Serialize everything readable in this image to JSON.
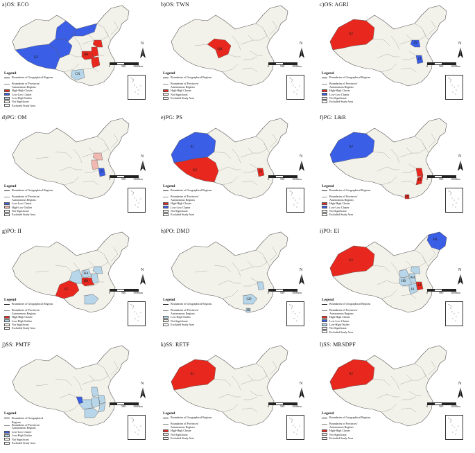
{
  "colors": {
    "land": "#f3f2ea",
    "border": "#8a8a8a",
    "outline": "#555555",
    "high_high": "#e8281e",
    "low_low": "#3a5ee6",
    "low_high": "#b7d6ea",
    "high_low": "#f0b8b0",
    "not_significant": "#f3f2ea",
    "excluded": "#ffffff"
  },
  "scale": {
    "zero": "0",
    "mid": "500",
    "end": "1000km"
  },
  "north_label": "N",
  "legend_title": "Legend",
  "legend_labels": {
    "geo": "Boundaries of Geographical Regions",
    "prov": "Boundaries of Provinces/ Autonomous Regions",
    "hh": "High-High Cluster",
    "ll": "Low-Low Cluster",
    "lh": "Low-High Outlier",
    "hl": "High-Low Outlier",
    "ns": "Not Significant",
    "ex": "Excluded Study Area",
    "geo_trunc": "Boundaries of Geographical",
    "regions_word": "Regions"
  },
  "panels": [
    {
      "title": "a)OS: ECO",
      "legend": [
        "geo",
        "prov",
        "hh",
        "ll",
        "lh",
        "ns",
        "ex"
      ],
      "regions": [
        {
          "p": "XZ",
          "c": "ll",
          "label": "XZ"
        },
        {
          "p": "QH",
          "c": "ll",
          "label": ""
        },
        {
          "p": "GS",
          "c": "ll",
          "label": ""
        },
        {
          "p": "NMW",
          "c": "ll",
          "label": ""
        },
        {
          "p": "HB",
          "c": "hh",
          "label": "HB"
        },
        {
          "p": "JS",
          "c": "hh",
          "label": ""
        },
        {
          "p": "AH",
          "c": "hh",
          "label": ""
        },
        {
          "p": "JX",
          "c": "hh",
          "label": ""
        },
        {
          "p": "GX",
          "c": "lh",
          "label": "GX"
        }
      ]
    },
    {
      "title": "b)OS: TWN",
      "legend": [
        "geo",
        "prov",
        "hh",
        "ns",
        "ex"
      ],
      "regions": [
        {
          "p": "QH",
          "c": "hh",
          "label": "QH"
        }
      ]
    },
    {
      "title": "c)OS: AGRI",
      "legend": [
        "geo",
        "prov",
        "hh",
        "ll",
        "ns",
        "ex"
      ],
      "regions": [
        {
          "p": "XJ",
          "c": "hh",
          "label": "XJ"
        },
        {
          "p": "JS",
          "c": "ll",
          "label": "JS"
        },
        {
          "p": "ZJ",
          "c": "ll",
          "label": "ZJ"
        }
      ]
    },
    {
      "title": "d)PG: OM",
      "legend": [
        "geo",
        "prov",
        "ll",
        "hl",
        "ns",
        "ex"
      ],
      "regions": [
        {
          "p": "ZJ",
          "c": "ll",
          "label": "ZJ"
        },
        {
          "p": "AH",
          "c": "hl",
          "label": ""
        },
        {
          "p": "JS",
          "c": "hl",
          "label": ""
        }
      ]
    },
    {
      "title": "e)PG: PS",
      "legend": [
        "geo",
        "prov",
        "hh",
        "ll",
        "ns",
        "ex"
      ],
      "regions": [
        {
          "p": "XJ",
          "c": "ll",
          "label": "XJ"
        },
        {
          "p": "XZ",
          "c": "hh",
          "label": "XZ"
        },
        {
          "p": "ZJ",
          "c": "hh",
          "label": "ZJ"
        }
      ]
    },
    {
      "title": "f)PG: L&R",
      "legend": [
        "geo",
        "prov",
        "hh",
        "ll",
        "ns",
        "ex"
      ],
      "regions": [
        {
          "p": "XJ",
          "c": "ll",
          "label": "XJ"
        },
        {
          "p": "FJ",
          "c": "hh",
          "label": "FJ"
        },
        {
          "p": "HI",
          "c": "hh",
          "label": "HI"
        },
        {
          "p": "ZJ",
          "c": "hh",
          "label": ""
        }
      ]
    },
    {
      "title": "g)PO: II",
      "legend": [
        "geo",
        "prov",
        "hh",
        "lh",
        "ns",
        "ex"
      ],
      "regions": [
        {
          "p": "SC",
          "c": "hh",
          "label": "SC"
        },
        {
          "p": "HB",
          "c": "hh",
          "label": "HB"
        },
        {
          "p": "HA",
          "c": "lh",
          "label": "HA"
        },
        {
          "p": "SN",
          "c": "lh",
          "label": ""
        },
        {
          "p": "JS",
          "c": "lh",
          "label": ""
        },
        {
          "p": "AH",
          "c": "lh",
          "label": ""
        },
        {
          "p": "GD",
          "c": "lh",
          "label": ""
        }
      ]
    },
    {
      "title": "h)PO: DMD",
      "legend": [
        "geo",
        "prov",
        "lh",
        "ns",
        "ex"
      ],
      "regions": [
        {
          "p": "GD",
          "c": "lh",
          "label": "GD"
        },
        {
          "p": "HI",
          "c": "lh",
          "label": "HI"
        },
        {
          "p": "ZJ",
          "c": "lh",
          "label": ""
        }
      ]
    },
    {
      "title": "i)PO: EI",
      "legend": [
        "geo",
        "prov",
        "hh",
        "ll",
        "lh",
        "ns",
        "ex"
      ],
      "regions": [
        {
          "p": "XJ",
          "c": "hh",
          "label": "XJ"
        },
        {
          "p": "HL",
          "c": "ll",
          "label": "HL"
        },
        {
          "p": "AH",
          "c": "lh",
          "label": "AH"
        },
        {
          "p": "HB",
          "c": "lh",
          "label": "HB"
        },
        {
          "p": "JX",
          "c": "lh",
          "label": "JX"
        },
        {
          "p": "ZJ",
          "c": "hh",
          "label": "ZJ"
        },
        {
          "p": "HA",
          "c": "lh",
          "label": ""
        },
        {
          "p": "JS",
          "c": "lh",
          "label": ""
        }
      ]
    },
    {
      "title": "j)SS: PMTF",
      "legend": [
        "geo_trunc",
        "regions_word",
        "prov",
        "ll",
        "lh",
        "ns",
        "ex"
      ],
      "regions": [
        {
          "p": "CQ",
          "c": "ll",
          "label": ""
        },
        {
          "p": "HN",
          "c": "lh",
          "label": ""
        },
        {
          "p": "JX",
          "c": "lh",
          "label": ""
        },
        {
          "p": "GD",
          "c": "lh",
          "label": ""
        },
        {
          "p": "FJ",
          "c": "lh",
          "label": ""
        },
        {
          "p": "ZJ",
          "c": "lh",
          "label": ""
        },
        {
          "p": "AH",
          "c": "lh",
          "label": ""
        }
      ]
    },
    {
      "title": "k)SS: RETF",
      "legend": [
        "geo",
        "prov",
        "hh",
        "ns",
        "ex"
      ],
      "regions": [
        {
          "p": "XJ",
          "c": "hh",
          "label": "XJ"
        }
      ]
    },
    {
      "title": "l)SS: MRSDPF",
      "legend": [
        "geo",
        "prov",
        "hh",
        "ns",
        "ex"
      ],
      "regions": [
        {
          "p": "XJ",
          "c": "hh",
          "label": "XJ"
        }
      ]
    }
  ]
}
